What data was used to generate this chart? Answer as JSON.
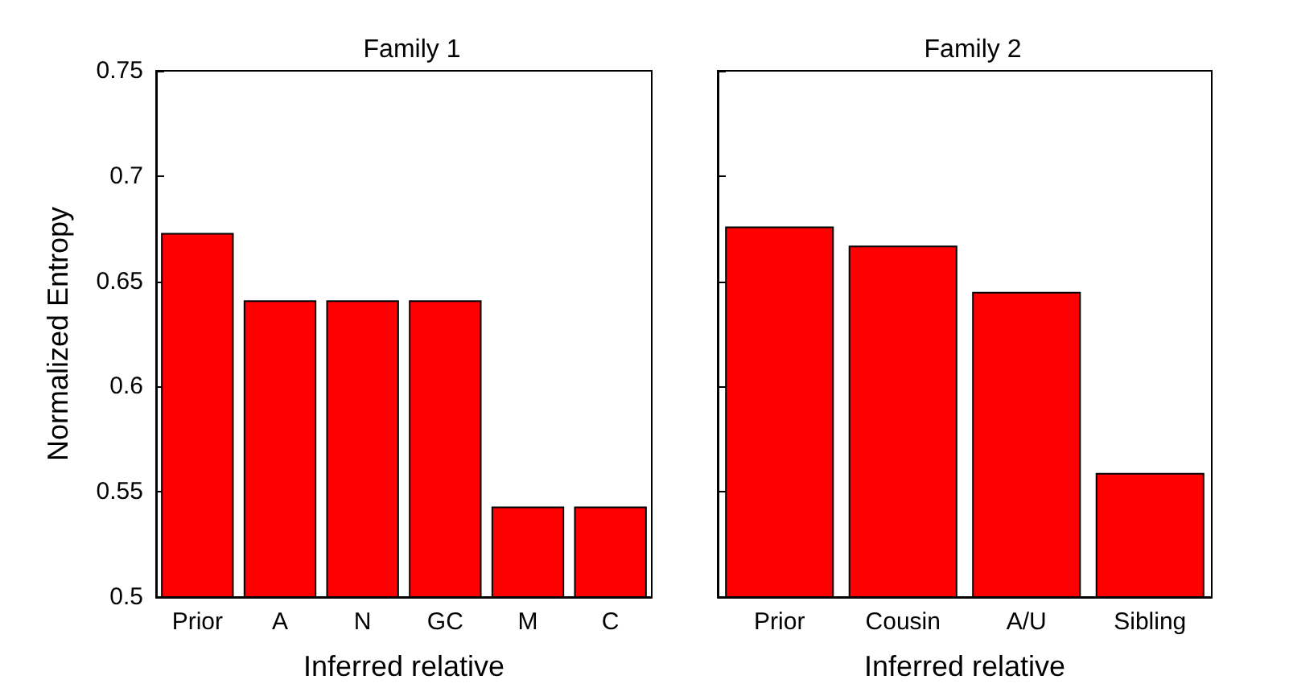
{
  "chart_data": [
    {
      "type": "bar",
      "title": "Family 1",
      "xlabel": "Inferred relative",
      "ylabel": "Normalized Entropy",
      "categories": [
        "Prior",
        "A",
        "N",
        "GC",
        "M",
        "C"
      ],
      "values": [
        0.673,
        0.641,
        0.641,
        0.641,
        0.543,
        0.543
      ],
      "color": "#ff0000",
      "ylim": [
        0.5,
        0.75
      ],
      "yticks": [
        0.5,
        0.55,
        0.6,
        0.65,
        0.7,
        0.75
      ],
      "grid": false
    },
    {
      "type": "bar",
      "title": "Family 2",
      "xlabel": "Inferred relative",
      "categories": [
        "Prior",
        "Cousin",
        "A/U",
        "Sibling"
      ],
      "values": [
        0.676,
        0.667,
        0.645,
        0.559
      ],
      "color": "#ff0000",
      "ylim": [
        0.5,
        0.75
      ],
      "yticks": [
        0.5,
        0.55,
        0.6,
        0.65,
        0.7,
        0.75
      ],
      "tick_labels": "x",
      "grid": false
    }
  ]
}
